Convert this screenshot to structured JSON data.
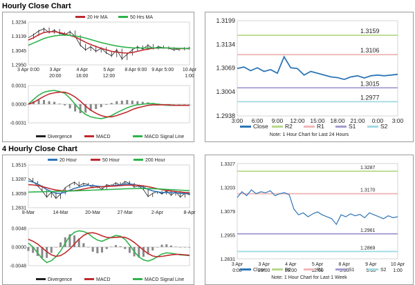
{
  "sections": {
    "hourly_title": "Hourly Close Chart",
    "four_hourly_title": "4 Hourly Close Chart"
  },
  "colors": {
    "red": "#c0282d",
    "green": "#2db34a",
    "blue": "#2e75b6",
    "black": "#202020",
    "grey": "#888888",
    "r2": "#b7d88a",
    "r1": "#efb7b7",
    "s1": "#a39bd0",
    "s2": "#9fd9e2"
  },
  "chart_data": [
    {
      "id": "hourly_ma",
      "type": "line",
      "legend": [
        "20 Hr MA",
        "50 Hrs MA"
      ],
      "y_ticks": [
        "1.3234",
        "1.3139",
        "1.3045",
        "1.2950"
      ],
      "ylim": [
        1.295,
        1.3234
      ],
      "x_ticks": [
        "3 Apr 0:00",
        "3 Apr\n20:00",
        "4 Apr\n16:00",
        "5 Apr\n12:00",
        "8 Apr 9:00",
        "9 Apr 5:00",
        "10 Apr\n1:00"
      ],
      "price": [
        1.313,
        1.315,
        1.3175,
        1.319,
        1.3165,
        1.318,
        1.316,
        1.315,
        1.317,
        1.314,
        1.308,
        1.305,
        1.307,
        1.304,
        1.306,
        1.303,
        1.301,
        1.305,
        1.299,
        1.302,
        1.305,
        1.307,
        1.3055,
        1.308,
        1.306,
        1.307,
        1.3065,
        1.306,
        1.305,
        1.3055,
        1.306,
        1.3062
      ],
      "ma20": [
        1.3115,
        1.313,
        1.315,
        1.3165,
        1.317,
        1.317,
        1.3165,
        1.3155,
        1.3145,
        1.3135,
        1.3118,
        1.31,
        1.3085,
        1.3072,
        1.306,
        1.305,
        1.304,
        1.3035,
        1.303,
        1.3028,
        1.3032,
        1.304,
        1.3048,
        1.3055,
        1.306,
        1.3062,
        1.3063,
        1.3062,
        1.306,
        1.3058,
        1.3058,
        1.3058
      ],
      "ma50": [
        1.308,
        1.3095,
        1.311,
        1.3125,
        1.3135,
        1.3142,
        1.3146,
        1.3148,
        1.3146,
        1.3142,
        1.3136,
        1.3128,
        1.3118,
        1.3108,
        1.3098,
        1.309,
        1.3082,
        1.3075,
        1.307,
        1.3066,
        1.3063,
        1.3062,
        1.3062,
        1.3062,
        1.3063,
        1.3063,
        1.3063,
        1.3062,
        1.3061,
        1.306,
        1.3059,
        1.3058
      ]
    },
    {
      "id": "hourly_macd",
      "type": "line",
      "legend": [
        "Divergence",
        "MACD",
        "MACD Signal Line"
      ],
      "y_ticks": [
        "0.0031",
        "0.0000",
        "-0.0031"
      ],
      "ylim": [
        -0.0031,
        0.0031
      ],
      "macd": [
        0.0,
        0.0008,
        0.0015,
        0.002,
        0.0022,
        0.0023,
        0.0021,
        0.0018,
        0.001,
        0.0,
        -0.001,
        -0.0017,
        -0.0021,
        -0.0023,
        -0.0024,
        -0.0022,
        -0.0019,
        -0.0014,
        -0.001,
        -0.0006,
        -0.0003,
        -0.0001,
        0.0,
        0.0001,
        0.0001,
        0.0,
        -0.0001,
        -0.0002,
        -0.0002,
        -0.0002,
        -0.0002,
        -0.0002
      ],
      "signal": [
        0.0,
        0.0003,
        0.0008,
        0.0013,
        0.0017,
        0.0019,
        0.002,
        0.002,
        0.0017,
        0.0012,
        0.0005,
        -0.0003,
        -0.001,
        -0.0015,
        -0.0019,
        -0.0021,
        -0.0021,
        -0.0019,
        -0.0016,
        -0.0013,
        -0.0009,
        -0.0006,
        -0.0004,
        -0.0002,
        -0.0001,
        -0.0001,
        -0.0001,
        -0.0001,
        -0.0002,
        -0.0002,
        -0.0002,
        -0.0002
      ]
    },
    {
      "id": "hourly_24h",
      "type": "line",
      "y_ticks": [
        "1.3199",
        "1.3134",
        "1.3069",
        "1.3004",
        "1.2938"
      ],
      "ylim": [
        1.2938,
        1.3199
      ],
      "x_ticks": [
        "3:00",
        "6:00",
        "9:00",
        "12:00",
        "15:00",
        "18:00",
        "21:00",
        "0:00",
        "3:00"
      ],
      "levels": [
        {
          "name": "R2",
          "value": 1.3159,
          "label": "1.3159"
        },
        {
          "name": "R1",
          "value": 1.3106,
          "label": "1.3106"
        },
        {
          "name": "S1",
          "value": 1.3015,
          "label": "1.3015"
        },
        {
          "name": "S2",
          "value": 1.2977,
          "label": "1.2977"
        }
      ],
      "close": [
        1.3068,
        1.3072,
        1.3062,
        1.307,
        1.306,
        1.3065,
        1.3055,
        1.31,
        1.307,
        1.3068,
        1.305,
        1.306,
        1.3055,
        1.305,
        1.3045,
        1.3043,
        1.3038,
        1.3045,
        1.3048,
        1.3042,
        1.3048,
        1.305,
        1.3048,
        1.305,
        1.3052
      ],
      "legend": [
        "Close",
        "R2",
        "R1",
        "S1",
        "S2"
      ],
      "note": "Note: 1 Hour Chart for Last 24 Hours"
    },
    {
      "id": "four_hourly_ma",
      "type": "line",
      "legend": [
        "20 Hour",
        "50 Hour",
        "200 Hour"
      ],
      "y_ticks": [
        "1.3515",
        "1.3287",
        "1.3059",
        "1.2831"
      ],
      "ylim": [
        1.2831,
        1.3515
      ],
      "x_ticks": [
        "8-Mar",
        "14-Mar",
        "20-Mar",
        "27-Mar",
        "2-Apr",
        "8-Apr"
      ],
      "price": [
        1.33,
        1.325,
        1.318,
        1.31,
        1.3,
        1.308,
        1.298,
        1.305,
        1.315,
        1.32,
        1.324,
        1.318,
        1.322,
        1.32,
        1.315,
        1.317,
        1.312,
        1.32,
        1.318,
        1.323,
        1.319,
        1.325,
        1.322,
        1.316,
        1.318,
        1.312,
        1.301,
        1.306,
        1.309,
        1.305,
        1.31,
        1.303,
        1.309,
        1.3,
        1.306,
        1.304
      ],
      "ma20": [
        1.326,
        1.324,
        1.321,
        1.317,
        1.312,
        1.309,
        1.306,
        1.306,
        1.308,
        1.311,
        1.314,
        1.316,
        1.318,
        1.319,
        1.3185,
        1.3175,
        1.3165,
        1.317,
        1.318,
        1.319,
        1.32,
        1.321,
        1.321,
        1.32,
        1.3185,
        1.316,
        1.3125,
        1.31,
        1.3085,
        1.3075,
        1.3075,
        1.307,
        1.3068,
        1.306,
        1.3058,
        1.3055
      ],
      "ma50": [
        1.32,
        1.3195,
        1.3185,
        1.317,
        1.315,
        1.313,
        1.3115,
        1.3105,
        1.31,
        1.31,
        1.3105,
        1.3115,
        1.313,
        1.3145,
        1.3155,
        1.3162,
        1.3168,
        1.3172,
        1.3175,
        1.318,
        1.3185,
        1.319,
        1.3192,
        1.3192,
        1.3188,
        1.318,
        1.3168,
        1.3152,
        1.3135,
        1.312,
        1.3108,
        1.3098,
        1.309,
        1.3082,
        1.3075,
        1.307
      ],
      "ma200": [
        1.308,
        1.3082,
        1.3084,
        1.3086,
        1.3088,
        1.309,
        1.3092,
        1.3094,
        1.3096,
        1.3098,
        1.31,
        1.3103,
        1.3106,
        1.3109,
        1.3112,
        1.3115,
        1.3118,
        1.3121,
        1.3124,
        1.3127,
        1.313,
        1.3133,
        1.3135,
        1.3137,
        1.3138,
        1.3138,
        1.3137,
        1.3135,
        1.3132,
        1.3128,
        1.3124,
        1.312,
        1.3116,
        1.3112,
        1.3108,
        1.3104
      ]
    },
    {
      "id": "four_hourly_macd",
      "type": "line",
      "legend": [
        "Divergence",
        "MACD",
        "MACD Signal Line"
      ],
      "y_ticks": [
        "0.0048",
        "0.0000",
        "-0.0048"
      ],
      "ylim": [
        -0.0048,
        0.0048
      ],
      "macd": [
        0.001,
        0.0,
        -0.0015,
        -0.003,
        -0.004,
        -0.0035,
        -0.0025,
        -0.001,
        0.001,
        0.0028,
        0.0038,
        0.0042,
        0.004,
        0.0035,
        0.0025,
        0.0018,
        0.0015,
        0.002,
        0.0025,
        0.003,
        0.0028,
        0.002,
        0.0005,
        -0.0012,
        -0.0025,
        -0.0033,
        -0.0036,
        -0.0032,
        -0.0025,
        -0.0018,
        -0.0015,
        -0.0016,
        -0.0018,
        -0.002,
        -0.0021,
        -0.0022
      ],
      "signal": [
        0.002,
        0.0015,
        0.0008,
        -0.0002,
        -0.0012,
        -0.002,
        -0.0024,
        -0.0022,
        -0.0015,
        -0.0005,
        0.0008,
        0.002,
        0.003,
        0.0036,
        0.0037,
        0.0034,
        0.0029,
        0.0025,
        0.0024,
        0.0025,
        0.0026,
        0.0025,
        0.002,
        0.0012,
        0.0002,
        -0.0008,
        -0.0017,
        -0.0023,
        -0.0025,
        -0.0024,
        -0.0022,
        -0.002,
        -0.0019,
        -0.0019,
        -0.002,
        -0.0021
      ]
    },
    {
      "id": "four_hourly_week",
      "type": "line",
      "y_ticks": [
        "1.3327",
        "1.3203",
        "1.3079",
        "1.2955",
        "1.2831"
      ],
      "ylim": [
        1.2831,
        1.3327
      ],
      "x_ticks": [
        "3 Apr\n0:00",
        "3 Apr\n20:00",
        "4 Apr\n16:00",
        "5 Apr\n12:00",
        "8 Apr\n9:00",
        "9 Apr\n5:00",
        "10 Apr\n1:00"
      ],
      "levels": [
        {
          "name": "R2",
          "value": 1.3287,
          "label": "1.3287"
        },
        {
          "name": "R1",
          "value": 1.317,
          "label": "1.3170"
        },
        {
          "name": "S1",
          "value": 1.2961,
          "label": "1.2961"
        },
        {
          "name": "S2",
          "value": 1.2869,
          "label": "1.2869"
        }
      ],
      "close": [
        1.315,
        1.318,
        1.316,
        1.319,
        1.317,
        1.318,
        1.3175,
        1.3185,
        1.316,
        1.317,
        1.3175,
        1.3165,
        1.309,
        1.306,
        1.307,
        1.305,
        1.3065,
        1.3075,
        1.306,
        1.305,
        1.304,
        1.301,
        1.306,
        1.305,
        1.3065,
        1.3055,
        1.3062,
        1.3045,
        1.307,
        1.306,
        1.305,
        1.304,
        1.3055,
        1.3045,
        1.305
      ],
      "legend": [
        "Close",
        "R2",
        "R1",
        "S1",
        "S2"
      ],
      "note": "Note: 1 Hour Chart for Last 1 Week"
    }
  ]
}
